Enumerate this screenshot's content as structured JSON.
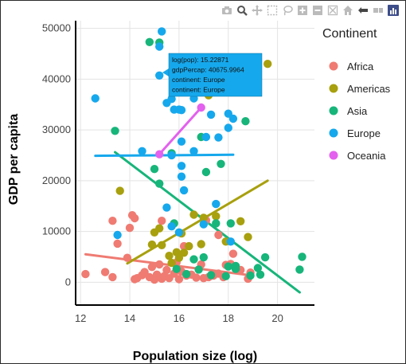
{
  "modebar": {
    "icons": [
      "camera-icon",
      "zoom-icon",
      "pan-icon",
      "box-select-icon",
      "lasso-icon",
      "zoom-in-icon",
      "zoom-out-icon",
      "autoscale-icon",
      "home-icon",
      "spike-lines-icon",
      "compare-hover-icon",
      "plotly-logo-icon"
    ]
  },
  "chart_data": {
    "type": "scatter",
    "title": "",
    "xlabel": "Population size (log)",
    "ylabel": "GDP per capita",
    "xlim": [
      11.8,
      21.5
    ],
    "ylim": [
      -4500,
      51500
    ],
    "xticks": [
      12,
      14,
      16,
      18,
      20
    ],
    "yticks": [
      0,
      10000,
      20000,
      30000,
      40000,
      50000
    ],
    "grid": true,
    "legend": {
      "title": "Continent",
      "placement": "right"
    },
    "series": [
      {
        "name": "Africa",
        "color": "#ef7b72",
        "points": [
          [
            12.2,
            1600
          ],
          [
            13.0,
            2000
          ],
          [
            13.3,
            1000
          ],
          [
            13.5,
            7600
          ],
          [
            13.3,
            12100
          ],
          [
            13.9,
            4800
          ],
          [
            14.0,
            10700
          ],
          [
            14.2,
            600
          ],
          [
            14.1,
            13200
          ],
          [
            14.3,
            800
          ],
          [
            14.2,
            12600
          ],
          [
            14.5,
            1400
          ],
          [
            14.6,
            2000
          ],
          [
            14.8,
            1000
          ],
          [
            14.9,
            3000
          ],
          [
            15.0,
            500
          ],
          [
            15.1,
            1500
          ],
          [
            15.2,
            3500
          ],
          [
            15.3,
            700
          ],
          [
            15.4,
            1200
          ],
          [
            15.5,
            2400
          ],
          [
            15.6,
            800
          ],
          [
            15.8,
            1700
          ],
          [
            15.9,
            3900
          ],
          [
            16.0,
            600
          ],
          [
            16.1,
            2100
          ],
          [
            16.2,
            7100
          ],
          [
            16.3,
            1300
          ],
          [
            16.5,
            1500
          ],
          [
            16.7,
            900
          ],
          [
            16.9,
            3500
          ],
          [
            17.0,
            800
          ],
          [
            17.2,
            1000
          ],
          [
            17.4,
            1300
          ],
          [
            17.6,
            1700
          ],
          [
            17.8,
            1000
          ],
          [
            17.9,
            3400
          ],
          [
            18.1,
            3600
          ],
          [
            18.2,
            5600
          ],
          [
            18.5,
            2400
          ],
          [
            18.8,
            700
          ],
          [
            18.9,
            1900
          ],
          [
            17.6,
            9300
          ],
          [
            17.1,
            12200
          ],
          [
            15.3,
            12100
          ]
        ]
      },
      {
        "name": "Americas",
        "color": "#a8a00e",
        "points": [
          [
            13.6,
            18000
          ],
          [
            14.9,
            7400
          ],
          [
            15.0,
            9800
          ],
          [
            15.2,
            10600
          ],
          [
            15.3,
            7300
          ],
          [
            15.6,
            5200
          ],
          [
            15.7,
            3800
          ],
          [
            15.9,
            5900
          ],
          [
            16.0,
            4800
          ],
          [
            16.1,
            9600
          ],
          [
            16.2,
            5800
          ],
          [
            16.4,
            7100
          ],
          [
            16.6,
            13300
          ],
          [
            16.9,
            7500
          ],
          [
            17.0,
            12700
          ],
          [
            17.5,
            13000
          ],
          [
            17.9,
            8000
          ],
          [
            18.5,
            12000
          ],
          [
            18.8,
            8900
          ],
          [
            19.6,
            43000
          ],
          [
            17.2,
            36800
          ]
        ]
      },
      {
        "name": "Asia",
        "color": "#17b57a",
        "points": [
          [
            13.4,
            29800
          ],
          [
            14.8,
            47300
          ],
          [
            15.2,
            47200
          ],
          [
            15.0,
            22300
          ],
          [
            15.2,
            19400
          ],
          [
            15.7,
            25400
          ],
          [
            15.8,
            11600
          ],
          [
            16.3,
            1600
          ],
          [
            16.6,
            4500
          ],
          [
            16.8,
            2500
          ],
          [
            17.0,
            4900
          ],
          [
            17.1,
            21700
          ],
          [
            17.3,
            1400
          ],
          [
            17.5,
            11600
          ],
          [
            17.7,
            23300
          ],
          [
            17.9,
            1200
          ],
          [
            18.0,
            3100
          ],
          [
            18.1,
            11600
          ],
          [
            18.3,
            2600
          ],
          [
            18.3,
            3200
          ],
          [
            18.7,
            31700
          ],
          [
            18.9,
            1300
          ],
          [
            19.2,
            2800
          ],
          [
            19.3,
            1500
          ],
          [
            19.5,
            4900
          ],
          [
            20.9,
            2500
          ],
          [
            21.0,
            5000
          ],
          [
            16.9,
            28600
          ],
          [
            15.9,
            2600
          ]
        ]
      },
      {
        "name": "Europe",
        "color": "#16a8ec",
        "points": [
          [
            12.6,
            36200
          ],
          [
            13.5,
            9300
          ],
          [
            14.5,
            25800
          ],
          [
            15.2,
            40700
          ],
          [
            15.3,
            49400
          ],
          [
            15.2,
            46400
          ],
          [
            15.5,
            35300
          ],
          [
            15.7,
            36100
          ],
          [
            15.8,
            34000
          ],
          [
            16.0,
            34000
          ],
          [
            16.1,
            33900
          ],
          [
            16.1,
            27700
          ],
          [
            16.1,
            22900
          ],
          [
            16.1,
            20800
          ],
          [
            16.2,
            18100
          ],
          [
            16.0,
            9800
          ],
          [
            15.7,
            11000
          ],
          [
            15.7,
            25000
          ],
          [
            16.6,
            36200
          ],
          [
            17.1,
            28600
          ],
          [
            17.3,
            33000
          ],
          [
            17.5,
            15400
          ],
          [
            17.6,
            28500
          ],
          [
            18.0,
            33200
          ],
          [
            18.0,
            30400
          ],
          [
            18.2,
            32200
          ],
          [
            18.1,
            8000
          ],
          [
            17.0,
            11400
          ],
          [
            15.5,
            14700
          ],
          [
            16.6,
            25800
          ]
        ]
      },
      {
        "name": "Oceania",
        "color": "#e361ee",
        "points": [
          [
            15.2,
            25200
          ],
          [
            16.9,
            34400
          ]
        ]
      }
    ],
    "trendlines": [
      {
        "name": "Africa",
        "color": "#ef7b72",
        "from": [
          12.2,
          5500
        ],
        "to": [
          19.0,
          1300
        ]
      },
      {
        "name": "Americas",
        "color": "#a8a00e",
        "from": [
          13.9,
          3700
        ],
        "to": [
          19.6,
          20000
        ]
      },
      {
        "name": "Asia",
        "color": "#17b57a",
        "from": [
          13.4,
          25600
        ],
        "to": [
          20.9,
          -2000
        ]
      },
      {
        "name": "Europe",
        "color": "#16a8ec",
        "from": [
          12.6,
          24900
        ],
        "to": [
          18.2,
          25100
        ]
      },
      {
        "name": "Oceania",
        "color": "#e361ee",
        "from": [
          15.2,
          25200
        ],
        "to": [
          16.9,
          34400
        ]
      }
    ],
    "hover": {
      "color": "#16a8ec",
      "lines": [
        "log(pop): 15.22871",
        "gdpPercap: 40675.9964",
        "continent: Europe",
        "continent: Europe"
      ]
    }
  }
}
